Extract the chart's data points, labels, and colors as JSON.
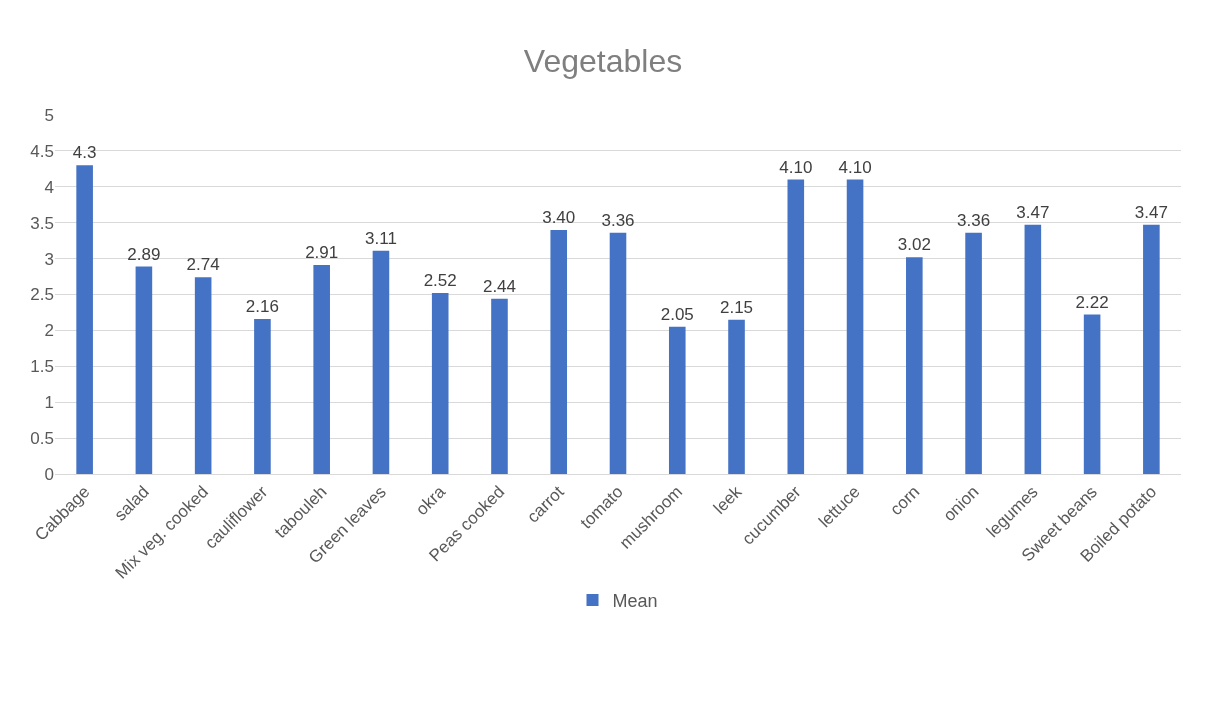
{
  "chart_data": {
    "type": "bar",
    "title": "Vegetables",
    "categories": [
      "Cabbage",
      "salad",
      "Mix veg. cooked",
      "cauliflower",
      "tabouleh",
      "Green leaves",
      "okra",
      "Peas cooked",
      "carrot",
      "tomato",
      "mushroom",
      "leek",
      "cucumber",
      "lettuce",
      "corn",
      "onion",
      "legumes",
      "Sweet beans",
      "Boiled potato"
    ],
    "series": [
      {
        "name": "Mean",
        "color": "#4472c4",
        "values": [
          4.3,
          2.89,
          2.74,
          2.16,
          2.91,
          3.11,
          2.52,
          2.44,
          3.4,
          3.36,
          2.05,
          2.15,
          4.1,
          4.1,
          3.02,
          3.36,
          3.47,
          2.22,
          3.47
        ],
        "value_labels": [
          "4.3",
          "2.89",
          "2.74",
          "2.16",
          "2.91",
          "3.11",
          "2.52",
          "2.44",
          "3.40",
          "3.36",
          "2.05",
          "2.15",
          "4.10",
          "4.10",
          "3.02",
          "3.36",
          "3.47",
          "2.22",
          "3.47"
        ]
      }
    ],
    "ylim": [
      0,
      5
    ],
    "yticks": [
      0,
      0.5,
      1,
      1.5,
      2,
      2.5,
      3,
      3.5,
      4,
      4.5,
      5
    ],
    "grid": "y",
    "legend": "bottom"
  }
}
